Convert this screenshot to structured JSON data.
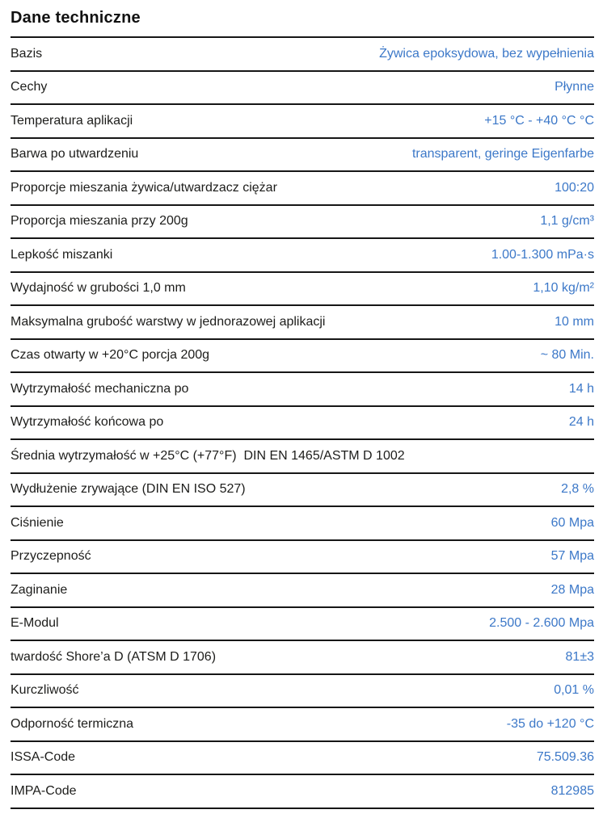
{
  "header": {
    "title": "Dane techniczne"
  },
  "colors": {
    "label_text": "#1d1d1b",
    "value_accent": "#3c78c8",
    "divider": "#161616"
  },
  "table": {
    "rows": [
      {
        "label": "Bazis",
        "value": "Żywica epoksydowa, bez wypełnienia"
      },
      {
        "label": "Cechy",
        "value": "Płynne"
      },
      {
        "label": "Temperatura aplikacji",
        "value": "+15 °C - +40 °C °C"
      },
      {
        "label": "Barwa po utwardzeniu",
        "value": "transparent, geringe Eigenfarbe"
      },
      {
        "label": "Proporcje mieszania żywica/utwardzacz ciężar",
        "value": "100:20"
      },
      {
        "label": "Proporcja mieszania przy 200g",
        "value": "1,1 g/cm³"
      },
      {
        "label": "Lepkość miszanki",
        "value": "1.00-1.300 mPa·s"
      },
      {
        "label": "Wydajność w grubości 1,0 mm",
        "value": "1,10 kg/m²"
      },
      {
        "label": "Maksymalna grubość warstwy w jednorazowej aplikacji",
        "value": "10 mm"
      },
      {
        "label": "Czas otwarty w +20°C porcja 200g",
        "value": "~ 80 Min."
      },
      {
        "label": "Wytrzymałość mechaniczna po",
        "value": "14 h"
      },
      {
        "label": "Wytrzymałość końcowa po",
        "value": "24 h"
      },
      {
        "label": "Średnia wytrzymałość w +25°C (+77°F)  DIN EN 1465/ASTM D 1002",
        "value": ""
      },
      {
        "label": "Wydłużenie zrywające (DIN EN ISO 527)",
        "value": "2,8 %"
      },
      {
        "label": "Ciśnienie",
        "value": "60 Mpa"
      },
      {
        "label": "Przyczepność",
        "value": "57 Mpa"
      },
      {
        "label": "Zaginanie",
        "value": "28 Mpa"
      },
      {
        "label": "E-Modul",
        "value": "2.500 - 2.600 Mpa"
      },
      {
        "label": "twardość Shore’a D (ATSM D 1706)",
        "value": "81±3"
      },
      {
        "label": "Kurczliwość",
        "value": "0,01 %"
      },
      {
        "label": "Odporność termiczna",
        "value": "-35 do +120 °C"
      },
      {
        "label": "ISSA-Code",
        "value": "75.509.36"
      },
      {
        "label": "IMPA-Code",
        "value": "812985"
      }
    ]
  }
}
